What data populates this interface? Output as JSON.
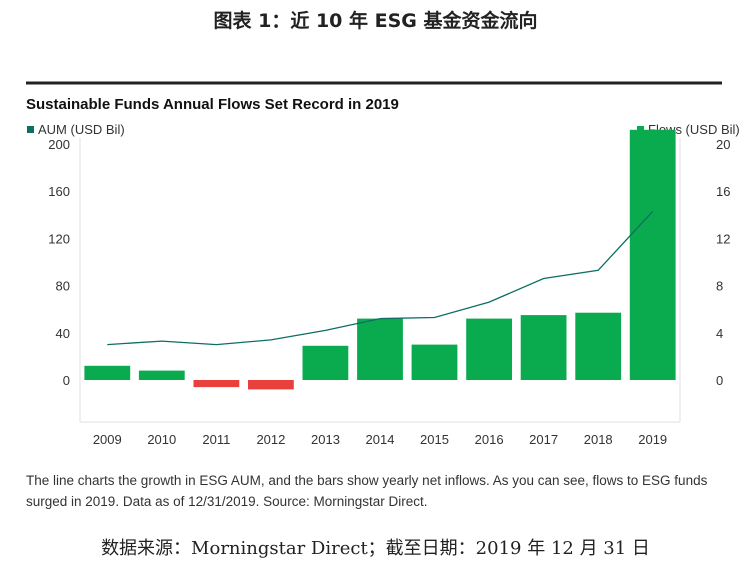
{
  "figure_title": "图表 1：近 10 年 ESG 基金资金流向",
  "caption": "The line charts the growth in ESG AUM, and the bars show yearly net inflows. As you can see, flows to ESG funds surged in 2019. Data as of 12/31/2019. Source: Morningstar Direct.",
  "source_note": "数据来源：Morningstar Direct；截至日期：2019 年 12 月 31 日",
  "colors": {
    "bar_positive": "#0aab4f",
    "bar_negative": "#e8403d",
    "line": "#0d6e63",
    "axis_rule": "#222222",
    "grid": "#e0e0e0"
  },
  "chart_data": {
    "type": "bar",
    "title": "Sustainable Funds Annual Flows Set Record in 2019",
    "categories": [
      "2009",
      "2010",
      "2011",
      "2012",
      "2013",
      "2014",
      "2015",
      "2016",
      "2017",
      "2018",
      "2019"
    ],
    "series": [
      {
        "name": "Flows (USD Bil)",
        "type": "bar",
        "axis": "right",
        "values": [
          12,
          8,
          -6,
          -8,
          29,
          52,
          30,
          52,
          55,
          57,
          212
        ]
      },
      {
        "name": "AUM (USD Bil)",
        "type": "line",
        "axis": "left",
        "values": [
          30,
          33,
          30,
          34,
          42,
          52,
          53,
          66,
          86,
          93,
          143
        ]
      }
    ],
    "left_axis": {
      "label": "AUM (USD Bil)",
      "ticks": [
        "200",
        "160",
        "120",
        "80",
        "40",
        "0"
      ]
    },
    "right_axis": {
      "label": "Flows (USD Bil)",
      "ticks": [
        "20",
        "16",
        "12",
        "8",
        "4",
        "0"
      ]
    },
    "ylim": [
      -10,
      210
    ]
  }
}
